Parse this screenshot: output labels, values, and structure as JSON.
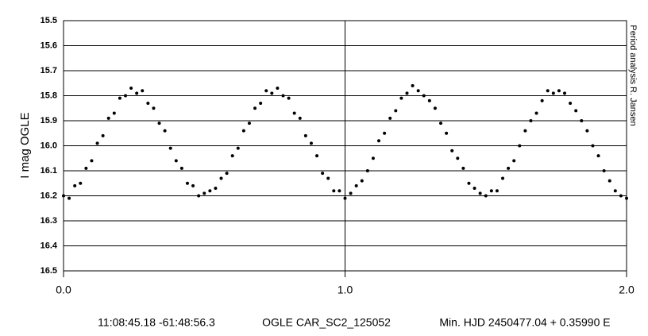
{
  "chart_data": {
    "type": "scatter",
    "y_label": "I mag OGLE",
    "side_note": "Period analysis R. Jansen",
    "annotations": [
      "11:08:45.18 -61:48:56.3",
      "OGLE CAR_SC2_125052",
      "Min. HJD 2450477.04 + 0.35990 E"
    ],
    "xlim": [
      0,
      2
    ],
    "xticks": [
      {
        "value": 0,
        "label": "0.0"
      },
      {
        "value": 1,
        "label": "1.0"
      },
      {
        "value": 2,
        "label": "2.0"
      }
    ],
    "ylim": [
      15.5,
      16.5
    ],
    "y_reversed": true,
    "yticks": [
      15.5,
      15.6,
      15.7,
      15.8,
      15.9,
      {
        "value": 16,
        "label": "16.0"
      },
      16.1,
      16.2,
      16.3,
      16.4,
      16.5
    ],
    "grid": true,
    "color": "#000000",
    "x": [
      0,
      0.02,
      0.04,
      0.06,
      0.08,
      0.1,
      0.12,
      0.14,
      0.16,
      0.18,
      0.2,
      0.22,
      0.24,
      0.26,
      0.28,
      0.3,
      0.32,
      0.34,
      0.36,
      0.38,
      0.4,
      0.42,
      0.44,
      0.46,
      0.48,
      0.5,
      0.52,
      0.54,
      0.56,
      0.58,
      0.6,
      0.62,
      0.64,
      0.66,
      0.68,
      0.7,
      0.72,
      0.74,
      0.76,
      0.78,
      0.8,
      0.82,
      0.84,
      0.86,
      0.88,
      0.9,
      0.92,
      0.94,
      0.96,
      0.98,
      1,
      1.02,
      1.04,
      1.06,
      1.08,
      1.1,
      1.12,
      1.14,
      1.16,
      1.18,
      1.2,
      1.22,
      1.24,
      1.26,
      1.28,
      1.3,
      1.32,
      1.34,
      1.36,
      1.38,
      1.4,
      1.42,
      1.44,
      1.46,
      1.48,
      1.5,
      1.52,
      1.54,
      1.56,
      1.58,
      1.6,
      1.62,
      1.64,
      1.66,
      1.68,
      1.7,
      1.72,
      1.74,
      1.76,
      1.78,
      1.8,
      1.82,
      1.84,
      1.86,
      1.88,
      1.9,
      1.92,
      1.94,
      1.96,
      1.98,
      2
    ],
    "values": [
      16.2,
      16.21,
      16.16,
      16.15,
      16.09,
      16.06,
      15.99,
      15.96,
      15.89,
      15.87,
      15.81,
      15.8,
      15.77,
      15.79,
      15.78,
      15.83,
      15.85,
      15.91,
      15.94,
      16.01,
      16.06,
      16.09,
      16.15,
      16.16,
      16.2,
      16.19,
      16.18,
      16.17,
      16.13,
      16.11,
      16.04,
      16.01,
      15.94,
      15.91,
      15.85,
      15.83,
      15.78,
      15.79,
      15.77,
      15.8,
      15.81,
      15.87,
      15.89,
      15.96,
      15.99,
      16.04,
      16.11,
      16.13,
      16.18,
      16.18,
      16.21,
      16.19,
      16.16,
      16.14,
      16.1,
      16.05,
      15.98,
      15.95,
      15.89,
      15.86,
      15.81,
      15.79,
      15.76,
      15.78,
      15.8,
      15.82,
      15.85,
      15.91,
      15.95,
      16.02,
      16.05,
      16.09,
      16.15,
      16.17,
      16.19,
      16.2,
      16.18,
      16.18,
      16.13,
      16.09,
      16.06,
      16.0,
      15.94,
      15.9,
      15.87,
      15.82,
      15.78,
      15.79,
      15.78,
      15.79,
      15.83,
      15.86,
      15.9,
      15.94,
      16.0,
      16.04,
      16.1,
      16.14,
      16.18,
      16.2,
      16.21
    ]
  }
}
